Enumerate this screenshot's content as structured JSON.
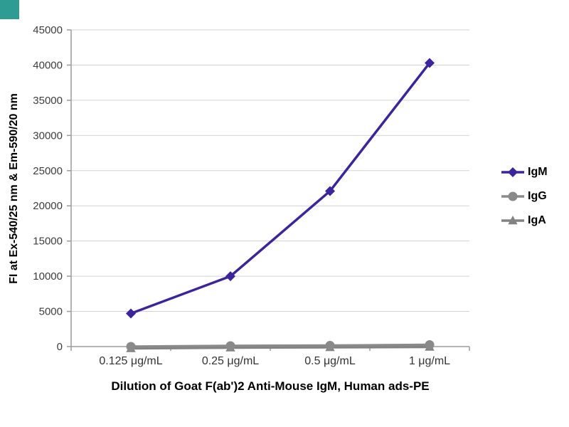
{
  "decor": {
    "corner_square_color": "#2e9c92"
  },
  "chart_data": {
    "type": "line",
    "title": "",
    "xlabel": "Dilution of Goat F(ab')2 Anti-Mouse IgM, Human ads-PE",
    "ylabel": "FI at Ex-540/25 nm & Em-590/20 nm",
    "categories": [
      "0.125 μg/mL",
      "0.25 μg/mL",
      "0.5 μg/mL",
      "1 μg/mL"
    ],
    "ylim": [
      0,
      45000
    ],
    "yticks": [
      0,
      5000,
      10000,
      15000,
      20000,
      25000,
      30000,
      35000,
      40000,
      45000
    ],
    "grid": true,
    "legend_position": "right",
    "series": [
      {
        "name": "IgM",
        "values": [
          4700,
          10000,
          22100,
          40300
        ],
        "color": "#3b249c",
        "marker": "diamond"
      },
      {
        "name": "IgG",
        "values": [
          0,
          100,
          150,
          250
        ],
        "color": "#8a8a8a",
        "marker": "circle"
      },
      {
        "name": "IgA",
        "values": [
          -250,
          -150,
          -100,
          -50
        ],
        "color": "#828282",
        "marker": "triangle"
      }
    ],
    "style": {
      "grid_color": "#d2d2d2",
      "axis_color": "#9b9b9b",
      "tick_label_color": "#3d3d3d"
    }
  }
}
